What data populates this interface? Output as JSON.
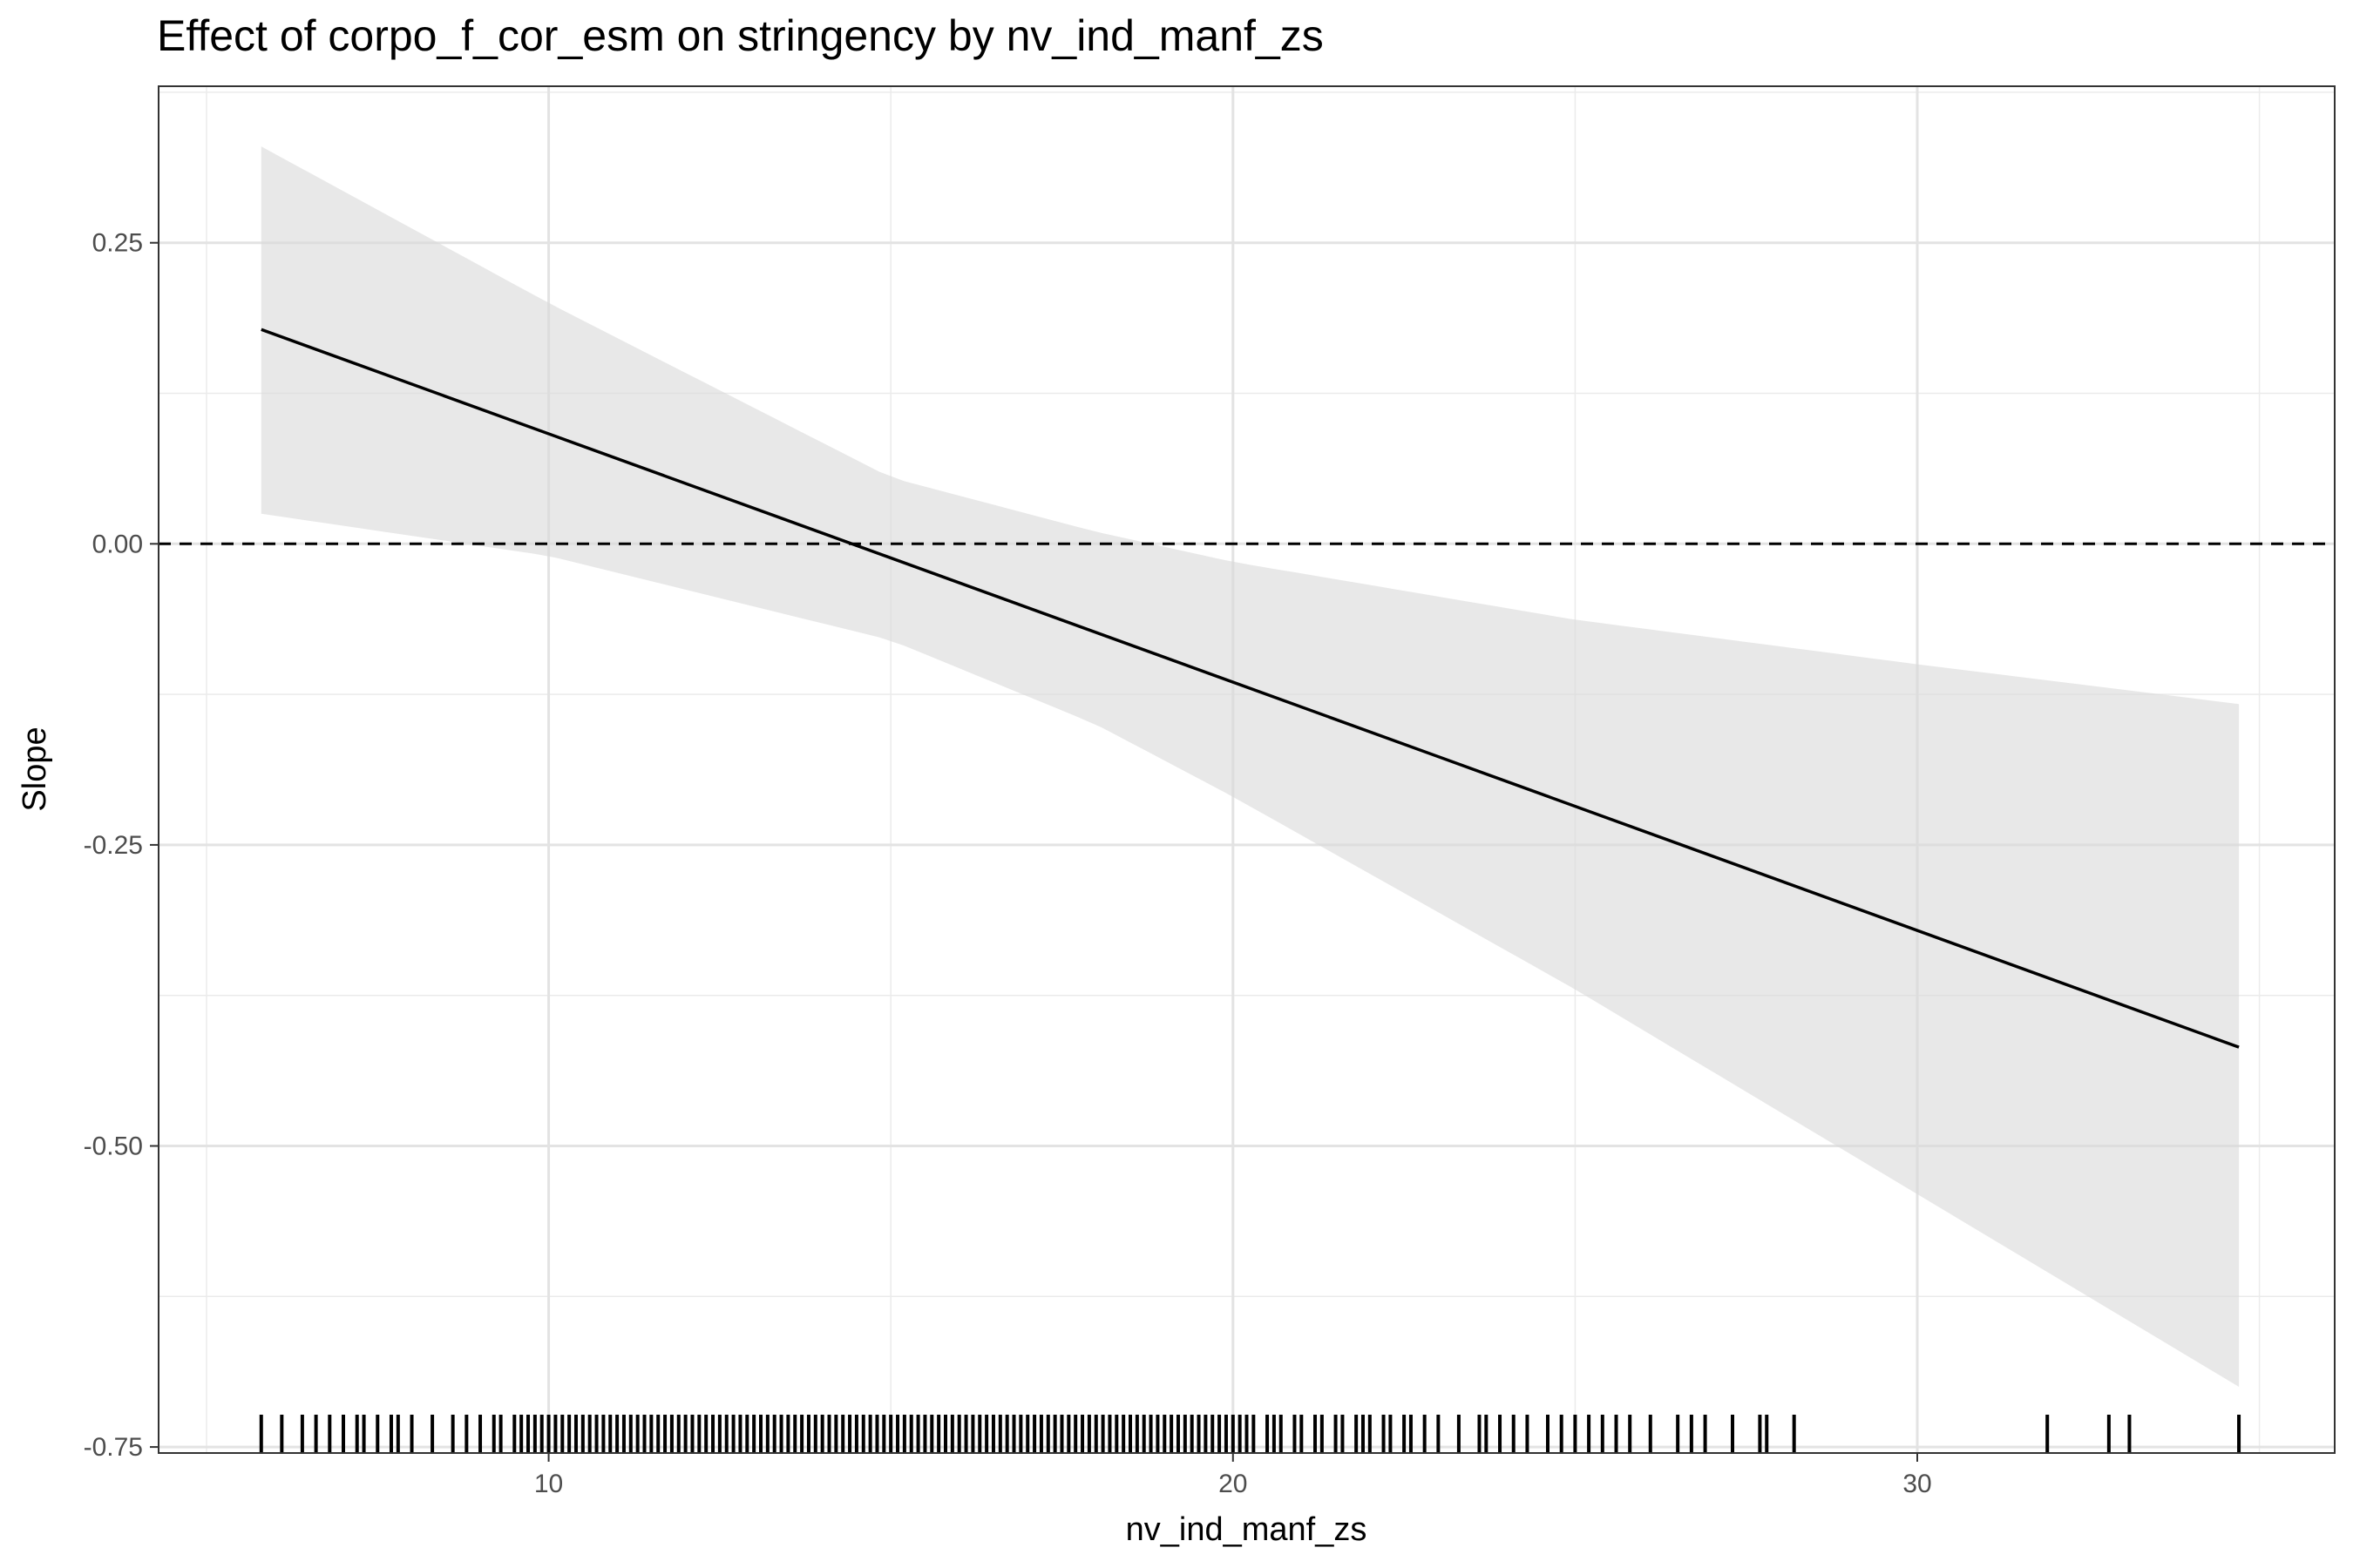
{
  "chart_data": {
    "type": "line",
    "title": "Effect of corpo_f_cor_esm on stringency by nv_ind_manf_zs",
    "xlabel": "nv_ind_manf_zs",
    "ylabel": "Slope",
    "xlim": [
      4.3,
      36.1
    ],
    "ylim": [
      -0.755,
      0.38
    ],
    "x_ticks": [
      10,
      20,
      30
    ],
    "x_tick_labels": [
      "10",
      "20",
      "30"
    ],
    "y_ticks": [
      -0.75,
      -0.5,
      -0.25,
      0.0,
      0.25
    ],
    "y_tick_labels": [
      "-0.75",
      "-0.50",
      "-0.25",
      "0.00",
      "0.25"
    ],
    "grid": true,
    "reference_line": {
      "y": 0,
      "style": "dashed"
    },
    "series": [
      {
        "type": "line",
        "x": [
          5.8,
          34.7
        ],
        "y": [
          0.178,
          -0.418
        ]
      },
      {
        "type": "ribbon",
        "x": [
          5.8,
          10,
          15,
          18,
          20,
          25,
          30,
          34.7
        ],
        "upper": [
          0.33,
          0.2,
          0.055,
          0.01,
          -0.015,
          -0.063,
          -0.1,
          -0.133
        ],
        "lower": [
          0.025,
          -0.01,
          -0.08,
          -0.15,
          -0.21,
          -0.37,
          -0.54,
          -0.7
        ]
      }
    ],
    "rug_x": [
      5.8,
      6.1,
      6.4,
      6.6,
      6.8,
      7.0,
      7.2,
      7.3,
      7.5,
      7.7,
      7.8,
      8.0,
      8.3,
      8.6,
      8.8,
      9.0,
      9.2,
      9.3,
      9.5,
      9.6,
      9.7,
      9.8,
      9.9,
      10.0,
      10.1,
      10.2,
      10.3,
      10.4,
      10.5,
      10.6,
      10.7,
      10.8,
      10.9,
      11.0,
      11.1,
      11.2,
      11.3,
      11.4,
      11.5,
      11.6,
      11.7,
      11.8,
      11.9,
      12.0,
      12.1,
      12.2,
      12.3,
      12.4,
      12.5,
      12.6,
      12.7,
      12.8,
      12.9,
      13.0,
      13.1,
      13.2,
      13.3,
      13.4,
      13.5,
      13.6,
      13.7,
      13.8,
      13.9,
      14.0,
      14.1,
      14.2,
      14.3,
      14.4,
      14.5,
      14.6,
      14.7,
      14.8,
      14.9,
      15.0,
      15.1,
      15.2,
      15.3,
      15.4,
      15.5,
      15.6,
      15.7,
      15.8,
      15.9,
      16.0,
      16.1,
      16.2,
      16.3,
      16.4,
      16.5,
      16.6,
      16.7,
      16.8,
      16.9,
      17.0,
      17.1,
      17.2,
      17.3,
      17.4,
      17.5,
      17.6,
      17.7,
      17.8,
      17.9,
      18.0,
      18.1,
      18.2,
      18.3,
      18.4,
      18.5,
      18.6,
      18.7,
      18.8,
      18.9,
      19.0,
      19.1,
      19.2,
      19.3,
      19.4,
      19.5,
      19.6,
      19.7,
      19.8,
      19.9,
      20.0,
      20.1,
      20.2,
      20.3,
      20.5,
      20.6,
      20.7,
      20.9,
      21.0,
      21.2,
      21.3,
      21.5,
      21.6,
      21.8,
      21.9,
      22.0,
      22.2,
      22.3,
      22.5,
      22.6,
      22.8,
      23.0,
      23.3,
      23.6,
      23.7,
      23.9,
      24.1,
      24.3,
      24.6,
      24.8,
      25.0,
      25.2,
      25.4,
      25.6,
      25.8,
      26.1,
      26.5,
      26.7,
      26.9,
      27.3,
      27.7,
      27.8,
      28.2,
      31.9,
      32.8,
      33.1,
      34.7
    ]
  }
}
